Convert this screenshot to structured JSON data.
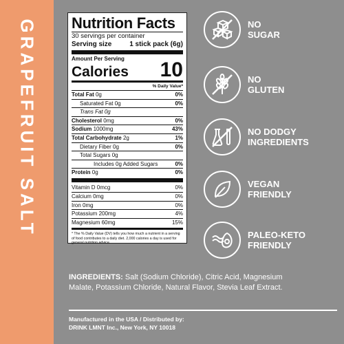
{
  "side_title": "GRAPEFRUIT SALT",
  "facts": {
    "title": "Nutrition Facts",
    "servings": "30 servings per container",
    "serving_size_label": "Serving size",
    "serving_size_value": "1 stick pack (6g)",
    "amount_per_serving": "Amount Per Serving",
    "calories_label": "Calories",
    "calories_value": "10",
    "dv_header": "% Daily Value*",
    "rows": [
      {
        "bold": "Total Fat",
        "rest": " 0g",
        "dv": "0%"
      },
      {
        "bold": "",
        "rest": "Saturated Fat 0g",
        "dv": "0%"
      },
      {
        "bold": "",
        "rest": "Trans Fat 0g",
        "dv": ""
      },
      {
        "bold": "Cholesterol",
        "rest": " 0mg",
        "dv": "0%"
      },
      {
        "bold": "Sodium",
        "rest": " 1000mg",
        "dv": "43%"
      },
      {
        "bold": "Total Carbohydrate",
        "rest": " 2g",
        "dv": "1%"
      },
      {
        "bold": "",
        "rest": "Dietary Fiber 0g",
        "dv": "0%"
      },
      {
        "bold": "",
        "rest": "Total Sugars 0g",
        "dv": ""
      },
      {
        "bold": "",
        "rest": "Includes 0g Added Sugars",
        "dv": "0%"
      },
      {
        "bold": "Protein",
        "rest": " 0g",
        "dv": "0%"
      }
    ],
    "vitamins": [
      {
        "name": "Vitamin D 0mcg",
        "dv": "0%"
      },
      {
        "name": "Calcium 0mg",
        "dv": "0%"
      },
      {
        "name": "Iron 0mg",
        "dv": "0%"
      },
      {
        "name": "Potassium 200mg",
        "dv": "4%"
      },
      {
        "name": "Magnesium 60mg",
        "dv": "15%"
      }
    ],
    "footnote": "* The % Daily Value (DV) tells you how much a nutrient in a serving of food contributes to a daily diet. 2,000 calories a day is used for general nutrition advice."
  },
  "claims": [
    {
      "icon": "sugar-cubes-icon",
      "line1": "NO",
      "line2": "SUGAR"
    },
    {
      "icon": "wheat-icon",
      "line1": "NO",
      "line2": "GLUTEN"
    },
    {
      "icon": "test-tubes-icon",
      "line1": "NO DODGY",
      "line2": "INGREDIENTS"
    },
    {
      "icon": "leaf-icon",
      "line1": "VEGAN",
      "line2": "FRIENDLY"
    },
    {
      "icon": "bacon-avocado-icon",
      "line1": "PALEO-KETO",
      "line2": "FRIENDLY"
    }
  ],
  "ingredients": {
    "label": "INGREDIENTS:",
    "text": " Salt (Sodium Chloride), Citric Acid, Magnesium Malate, Potassium Chloride, Natural Flavor, Stevia Leaf Extract."
  },
  "manufacturer": {
    "line1": "Manufactured in the USA / Distributed by:",
    "line2": "DRINK LMNT Inc., New York, NY 10018"
  },
  "colors": {
    "side_band": "#ef9b6d",
    "panel": "#8e8e8e",
    "text": "#ffffff"
  }
}
